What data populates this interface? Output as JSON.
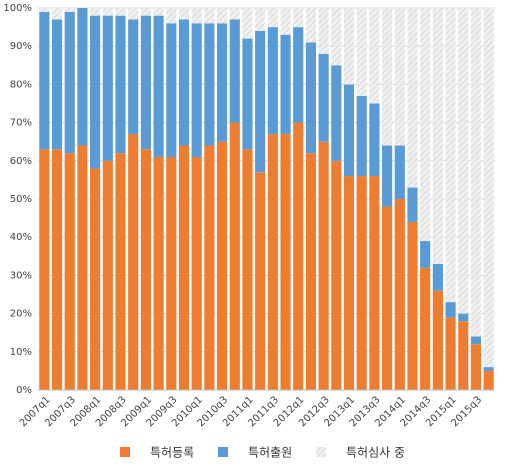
{
  "chart_data": {
    "type": "stacked_bar",
    "categories": [
      "2007q1",
      null,
      "2007q3",
      null,
      "2008q1",
      null,
      "2008q3",
      null,
      "2009q1",
      null,
      "2009q3",
      null,
      "2010q1",
      null,
      "2010q3",
      null,
      "2011q1",
      null,
      "2011q3",
      null,
      "2012q1",
      null,
      "2012q3",
      null,
      "2013q1",
      null,
      "2013q3",
      null,
      "2014q1",
      null,
      "2014q3",
      null,
      "2015q1",
      null,
      "2015q3",
      null
    ],
    "series": [
      {
        "name": "특허등록",
        "color": "#ed7d31",
        "values": [
          63,
          63,
          62,
          64,
          58,
          60,
          62,
          67,
          63,
          61,
          61,
          64,
          61,
          64,
          65,
          70,
          63,
          57,
          67,
          67,
          70,
          62,
          65,
          60,
          56,
          56,
          56,
          48,
          50,
          44,
          32,
          26,
          19,
          18,
          12,
          5
        ]
      },
      {
        "name": "특허출원",
        "color": "#5b9bd5",
        "values": [
          36,
          34,
          37,
          36,
          40,
          38,
          36,
          30,
          35,
          37,
          35,
          33,
          35,
          32,
          31,
          27,
          29,
          37,
          28,
          26,
          25,
          29,
          23,
          25,
          24,
          21,
          19,
          16,
          14,
          9,
          7,
          7,
          4,
          2,
          2,
          1
        ]
      },
      {
        "name": "특허심사 중",
        "color": "#ececec",
        "values": [
          1,
          3,
          1,
          0,
          2,
          2,
          2,
          3,
          2,
          2,
          4,
          3,
          4,
          4,
          4,
          3,
          8,
          6,
          5,
          7,
          5,
          9,
          12,
          15,
          20,
          23,
          25,
          36,
          36,
          47,
          61,
          67,
          77,
          80,
          86,
          94
        ]
      }
    ],
    "ylim": [
      0,
      100
    ],
    "yticks": [
      {
        "value": 0,
        "label": "0%"
      },
      {
        "value": 10,
        "label": "10%"
      },
      {
        "value": 20,
        "label": "20%"
      },
      {
        "value": 30,
        "label": "30%"
      },
      {
        "value": 40,
        "label": "40%"
      },
      {
        "value": 50,
        "label": "50%"
      },
      {
        "value": 60,
        "label": "60%"
      },
      {
        "value": 70,
        "label": "70%"
      },
      {
        "value": 80,
        "label": "80%"
      },
      {
        "value": 90,
        "label": "90%"
      },
      {
        "value": 100,
        "label": "100%"
      }
    ],
    "grid": true
  }
}
